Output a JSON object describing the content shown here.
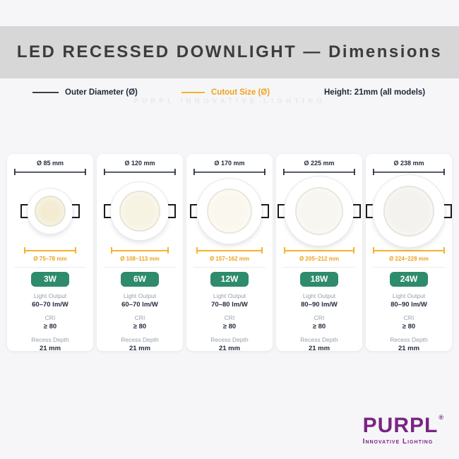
{
  "header": {
    "title": "LED RECESSED DOWNLIGHT — Dimensions"
  },
  "legend": {
    "outer_diameter": "Outer Diameter (Ø)",
    "cutout_size": "Cutout Size (Ø)",
    "height_note": "Height: 21mm (all models)"
  },
  "watermark": "PURPL INNOVATIVE LIGHTING",
  "spec_labels": {
    "light_output": "Light Output",
    "cri": "CRI",
    "recess_depth": "Recess Depth"
  },
  "products": [
    {
      "wattage": "3W",
      "outer_diameter": "Ø 85 mm",
      "cutout": "Ø 75–78 mm",
      "light_output": "60–70 lm/W",
      "cri": "≥ 80",
      "recess_depth": "21 mm"
    },
    {
      "wattage": "6W",
      "outer_diameter": "Ø 120 mm",
      "cutout": "Ø 108–113 mm",
      "light_output": "60–70 lm/W",
      "cri": "≥ 80",
      "recess_depth": "21 mm"
    },
    {
      "wattage": "12W",
      "outer_diameter": "Ø 170 mm",
      "cutout": "Ø 157–162 mm",
      "light_output": "70–80 lm/W",
      "cri": "≥ 80",
      "recess_depth": "21 mm"
    },
    {
      "wattage": "18W",
      "outer_diameter": "Ø 225 mm",
      "cutout": "Ø 205–212 mm",
      "light_output": "80–90 lm/W",
      "cri": "≥ 80",
      "recess_depth": "21 mm"
    },
    {
      "wattage": "24W",
      "outer_diameter": "Ø 238 mm",
      "cutout": "Ø 224–228 mm",
      "light_output": "80–90 lm/W",
      "cri": "≥ 80",
      "recess_depth": "21 mm"
    }
  ],
  "logo": {
    "brand": "PURPL",
    "reg": "®",
    "tagline": "Innovative Lighting"
  },
  "colors": {
    "accent_orange": "#F0A11F",
    "dimension_dark": "#2B3441",
    "badge_green": "#2E8B6C",
    "brand_purple": "#7A2483",
    "band_gray": "#D7D7D7"
  }
}
